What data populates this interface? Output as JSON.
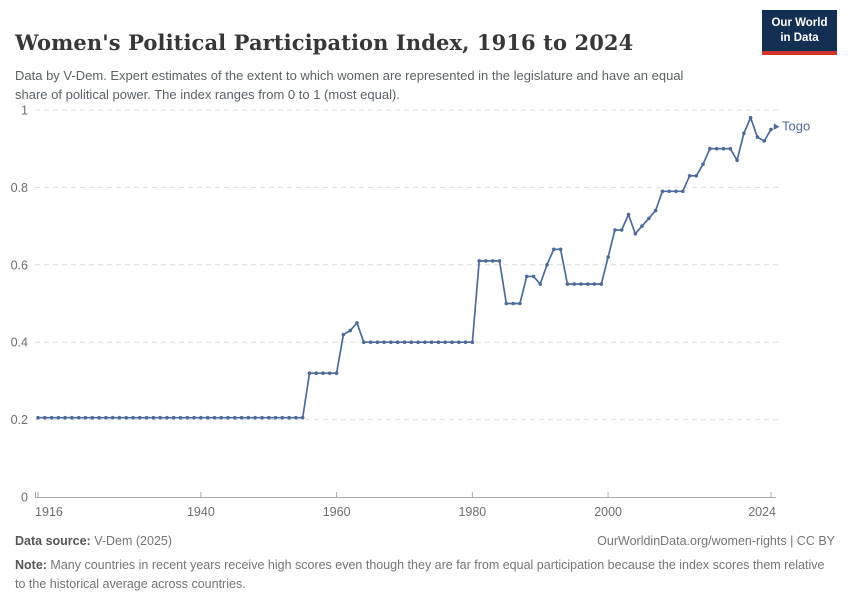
{
  "chart_data": {
    "type": "line",
    "title": "Women's Political Participation Index, 1916 to 2024",
    "subtitle": "Data by V-Dem. Expert estimates of the extent to which women are represented in the legislature and have an equal share of political power. The index ranges from 0 to 1 (most equal).",
    "entity_label": "Togo",
    "xlim": [
      1916,
      2024
    ],
    "ylim": [
      0,
      1
    ],
    "x_ticks": [
      1916,
      1940,
      1960,
      1980,
      2000,
      2024
    ],
    "y_ticks": [
      0,
      0.2,
      0.4,
      0.6,
      0.8,
      1
    ],
    "grid": "horizontal-dashed",
    "legend_position": "end-of-line-label",
    "series": [
      {
        "name": "Togo",
        "color": "#4c6a9c",
        "x_start_year": 1916,
        "x_step": 1,
        "values": [
          0.205,
          0.205,
          0.205,
          0.205,
          0.205,
          0.205,
          0.205,
          0.205,
          0.205,
          0.205,
          0.205,
          0.205,
          0.205,
          0.205,
          0.205,
          0.205,
          0.205,
          0.205,
          0.205,
          0.205,
          0.205,
          0.205,
          0.205,
          0.205,
          0.205,
          0.205,
          0.205,
          0.205,
          0.205,
          0.205,
          0.205,
          0.205,
          0.205,
          0.205,
          0.205,
          0.205,
          0.205,
          0.205,
          0.205,
          0.205,
          0.32,
          0.32,
          0.32,
          0.32,
          0.32,
          0.42,
          0.43,
          0.45,
          0.4,
          0.4,
          0.4,
          0.4,
          0.4,
          0.4,
          0.4,
          0.4,
          0.4,
          0.4,
          0.4,
          0.4,
          0.4,
          0.4,
          0.4,
          0.4,
          0.4,
          0.61,
          0.61,
          0.61,
          0.61,
          0.5,
          0.5,
          0.5,
          0.57,
          0.57,
          0.55,
          0.6,
          0.64,
          0.64,
          0.55,
          0.55,
          0.55,
          0.55,
          0.55,
          0.55,
          0.62,
          0.69,
          0.69,
          0.73,
          0.68,
          0.7,
          0.72,
          0.74,
          0.79,
          0.79,
          0.79,
          0.79,
          0.83,
          0.83,
          0.86,
          0.9,
          0.9,
          0.9,
          0.9,
          0.87,
          0.94,
          0.98,
          0.93,
          0.92,
          0.95
        ]
      }
    ]
  },
  "header": {
    "logo": {
      "line1": "Our World",
      "line2": "in Data",
      "bg_color": "#132f52",
      "stripe_color": "#d1332e"
    }
  },
  "footer": {
    "source_label": "Data source:",
    "source_value": " V-Dem (2025)",
    "link": "OurWorldinData.org/women-rights | CC BY",
    "note_label": "Note:",
    "note_value": " Many countries in recent years receive high scores even though they are far from equal participation because the index scores them relative to the historical average across countries."
  }
}
